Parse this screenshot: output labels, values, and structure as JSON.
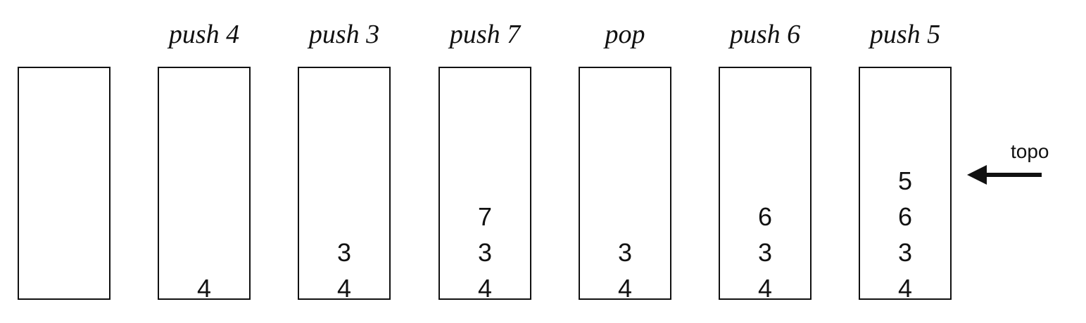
{
  "stacks": [
    {
      "operation": "",
      "values": []
    },
    {
      "operation": "push 4",
      "values": [
        "4"
      ]
    },
    {
      "operation": "push 3",
      "values": [
        "4",
        "3"
      ]
    },
    {
      "operation": "push 7",
      "values": [
        "4",
        "3",
        "7"
      ]
    },
    {
      "operation": "pop",
      "values": [
        "4",
        "3"
      ]
    },
    {
      "operation": "push 6",
      "values": [
        "4",
        "3",
        "6"
      ]
    },
    {
      "operation": "push 5",
      "values": [
        "4",
        "3",
        "6",
        "5"
      ]
    }
  ],
  "top_pointer": {
    "label": "topo",
    "icon": "arrow-left-icon"
  },
  "colors": {
    "stroke": "#111111",
    "background": "#ffffff"
  }
}
